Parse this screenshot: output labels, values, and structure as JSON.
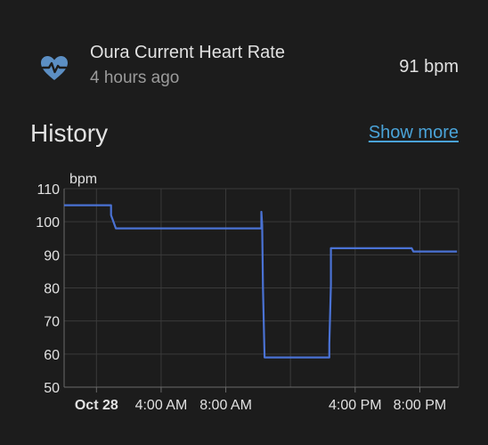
{
  "entity": {
    "icon": "heart-pulse-icon",
    "name": "Oura Current Heart Rate",
    "last_changed": "4 hours ago",
    "state": "91 bpm"
  },
  "history": {
    "title": "History",
    "show_more": "Show more"
  },
  "colors": {
    "background": "#1c1c1c",
    "icon": "#5c8fc4",
    "link": "#4aa3d8",
    "line": "#4a72d4",
    "grid": "#3a3a3a"
  },
  "chart_data": {
    "type": "line",
    "ylabel": "bpm",
    "ylim": [
      50,
      110
    ],
    "yticks": [
      50,
      60,
      70,
      80,
      90,
      100,
      110
    ],
    "xlim_hours": [
      -2,
      22.4
    ],
    "xticks": [
      {
        "label": "Oct 28",
        "hour": 0,
        "bold": true
      },
      {
        "label": "4:00 AM",
        "hour": 4,
        "bold": false
      },
      {
        "label": "8:00 AM",
        "hour": 8,
        "bold": false
      },
      {
        "label": "4:00 PM",
        "hour": 16,
        "bold": false
      },
      {
        "label": "8:00 PM",
        "hour": 20,
        "bold": false
      }
    ],
    "grid_hours": [
      0,
      4,
      8,
      12,
      16,
      20
    ],
    "grid": true,
    "series": [
      {
        "x_hours": [
          -2.0,
          0.9,
          0.9,
          1.2,
          1.2,
          10.2,
          10.2,
          10.25,
          10.3,
          10.4,
          10.4,
          14.4,
          14.4,
          14.5,
          14.5,
          19.5,
          19.6,
          22.3
        ],
        "values": [
          105,
          105,
          102,
          98,
          98,
          98,
          103,
          99,
          80,
          59,
          59,
          59,
          63,
          81,
          92,
          92,
          91,
          91
        ]
      }
    ]
  }
}
